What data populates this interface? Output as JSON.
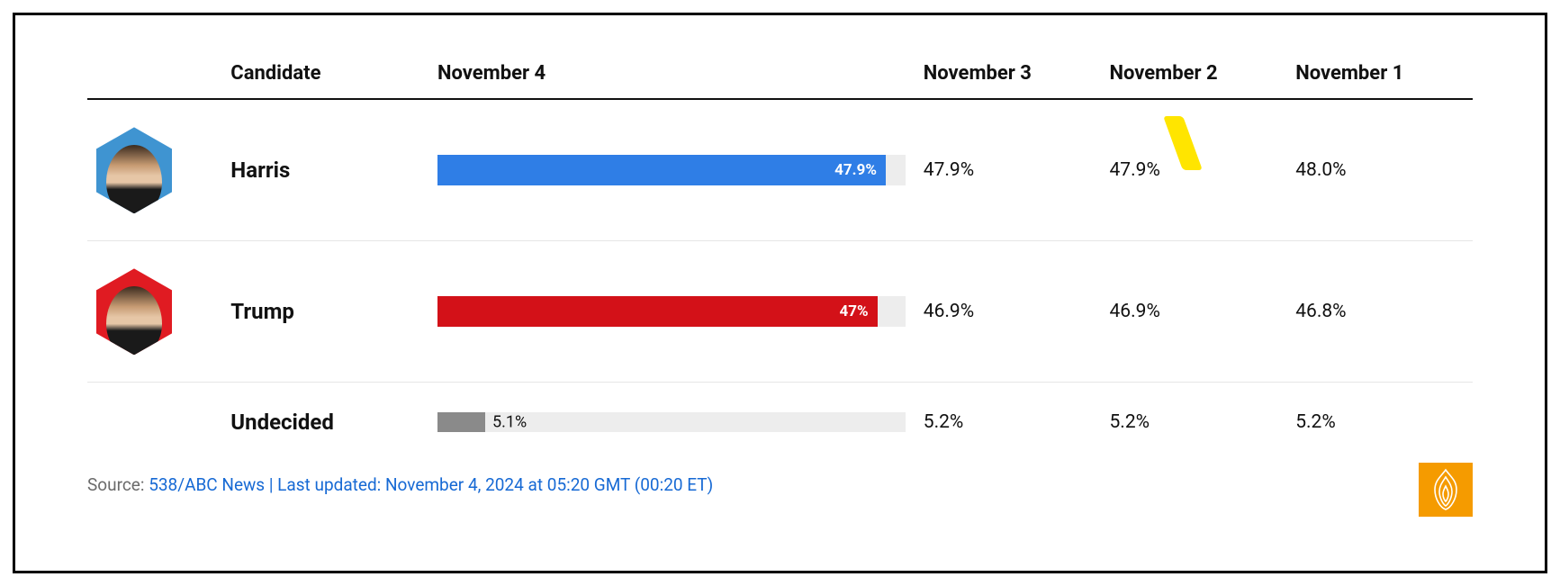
{
  "columns": {
    "candidate": "Candidate",
    "main_day": "November 4",
    "days": [
      "November 3",
      "November 2",
      "November 1"
    ]
  },
  "bar": {
    "max_value": 50.0,
    "track_color": "#ededed",
    "inside_label_color": "#ffffff",
    "bar_height_main": 34,
    "bar_height_thin": 22
  },
  "rows": [
    {
      "id": "harris",
      "name": "Harris",
      "avatar_bg": "#3f94d1",
      "bar_color": "#2f7ee6",
      "main_value": 47.9,
      "main_label": "47.9%",
      "label_position": "inside",
      "days": [
        "47.9%",
        "47.9%",
        "48.0%"
      ],
      "trend_day_index": 1,
      "trend_color": "#ffe500"
    },
    {
      "id": "trump",
      "name": "Trump",
      "avatar_bg": "#e01b22",
      "bar_color": "#d31118",
      "main_value": 47.0,
      "main_label": "47%",
      "label_position": "inside",
      "days": [
        "46.9%",
        "46.9%",
        "46.8%"
      ]
    },
    {
      "id": "undecided",
      "name": "Undecided",
      "avatar_bg": null,
      "bar_color": "#8a8a8a",
      "thin_bar": true,
      "main_value": 5.1,
      "main_label": "5.1%",
      "label_position": "outside",
      "days": [
        "5.2%",
        "5.2%",
        "5.2%"
      ]
    }
  ],
  "footer": {
    "prefix": "Source: ",
    "source_text": "538/ABC News | Last updated: November 4, 2024 at 05:20 GMT (00:20 ET)",
    "source_color": "#1669d4",
    "prefix_color": "#6b6b6b"
  },
  "logo": {
    "bg_color": "#f59b00",
    "stroke_color": "#ffffff"
  },
  "frame": {
    "border_color": "#000000",
    "background": "#ffffff"
  }
}
